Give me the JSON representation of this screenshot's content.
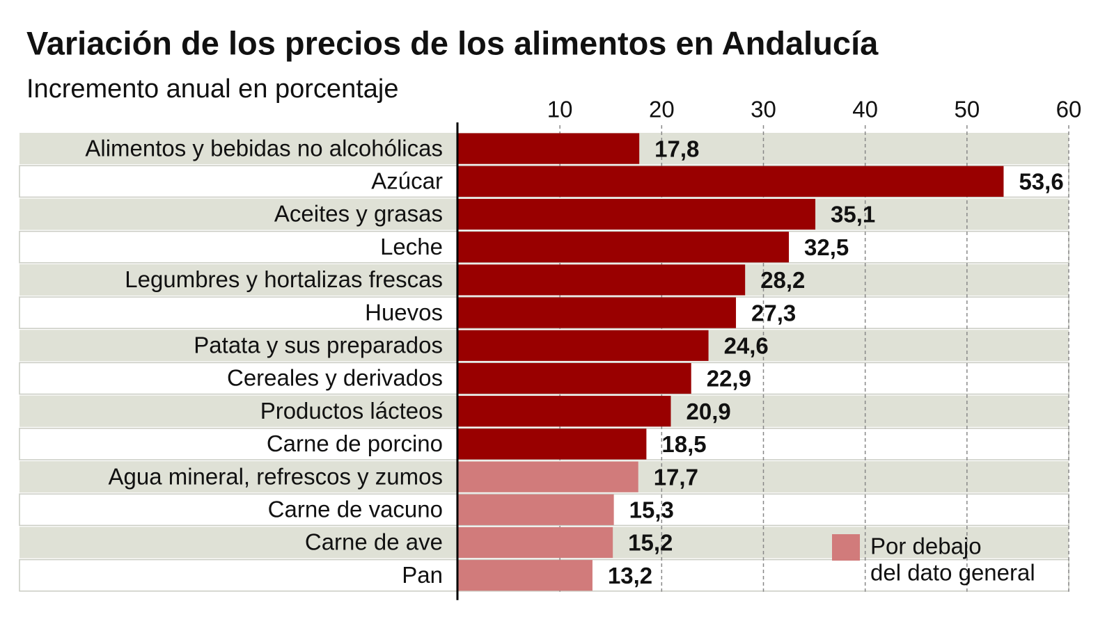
{
  "chart_data": {
    "type": "barh",
    "title": "Variación de los precios de los alimentos en Andalucía",
    "subtitle": "Incremento anual en porcentaje",
    "categories": [
      "Alimentos y bebidas no alcohólicas",
      "Azúcar",
      "Aceites y grasas",
      "Leche",
      "Legumbres y hortalizas frescas",
      "Huevos",
      "Patata y sus preparados",
      "Cereales y derivados",
      "Productos lácteos",
      "Carne de porcino",
      "Agua mineral, refrescos y zumos",
      "Carne de vacuno",
      "Carne de ave",
      "Pan"
    ],
    "values": [
      17.8,
      53.6,
      35.1,
      32.5,
      28.2,
      27.3,
      24.6,
      22.9,
      20.9,
      18.5,
      17.7,
      15.3,
      15.2,
      13.2
    ],
    "value_labels": [
      "17,8",
      "53,6",
      "35,1",
      "32,5",
      "28,2",
      "27,3",
      "24,6",
      "22,9",
      "20,9",
      "18,5",
      "17,7",
      "15,3",
      "15,2",
      "13,2"
    ],
    "colors": [
      "#990000",
      "#990000",
      "#990000",
      "#990000",
      "#990000",
      "#990000",
      "#990000",
      "#990000",
      "#990000",
      "#990000",
      "#d17b7b",
      "#d17b7b",
      "#d17b7b",
      "#d17b7b"
    ],
    "xlim": [
      0,
      60
    ],
    "xticks": [
      10,
      20,
      30,
      40,
      50,
      60
    ],
    "grid": true,
    "legend": {
      "color": "#d17b7b",
      "lines": [
        "Por debajo",
        "del dato general"
      ]
    }
  }
}
